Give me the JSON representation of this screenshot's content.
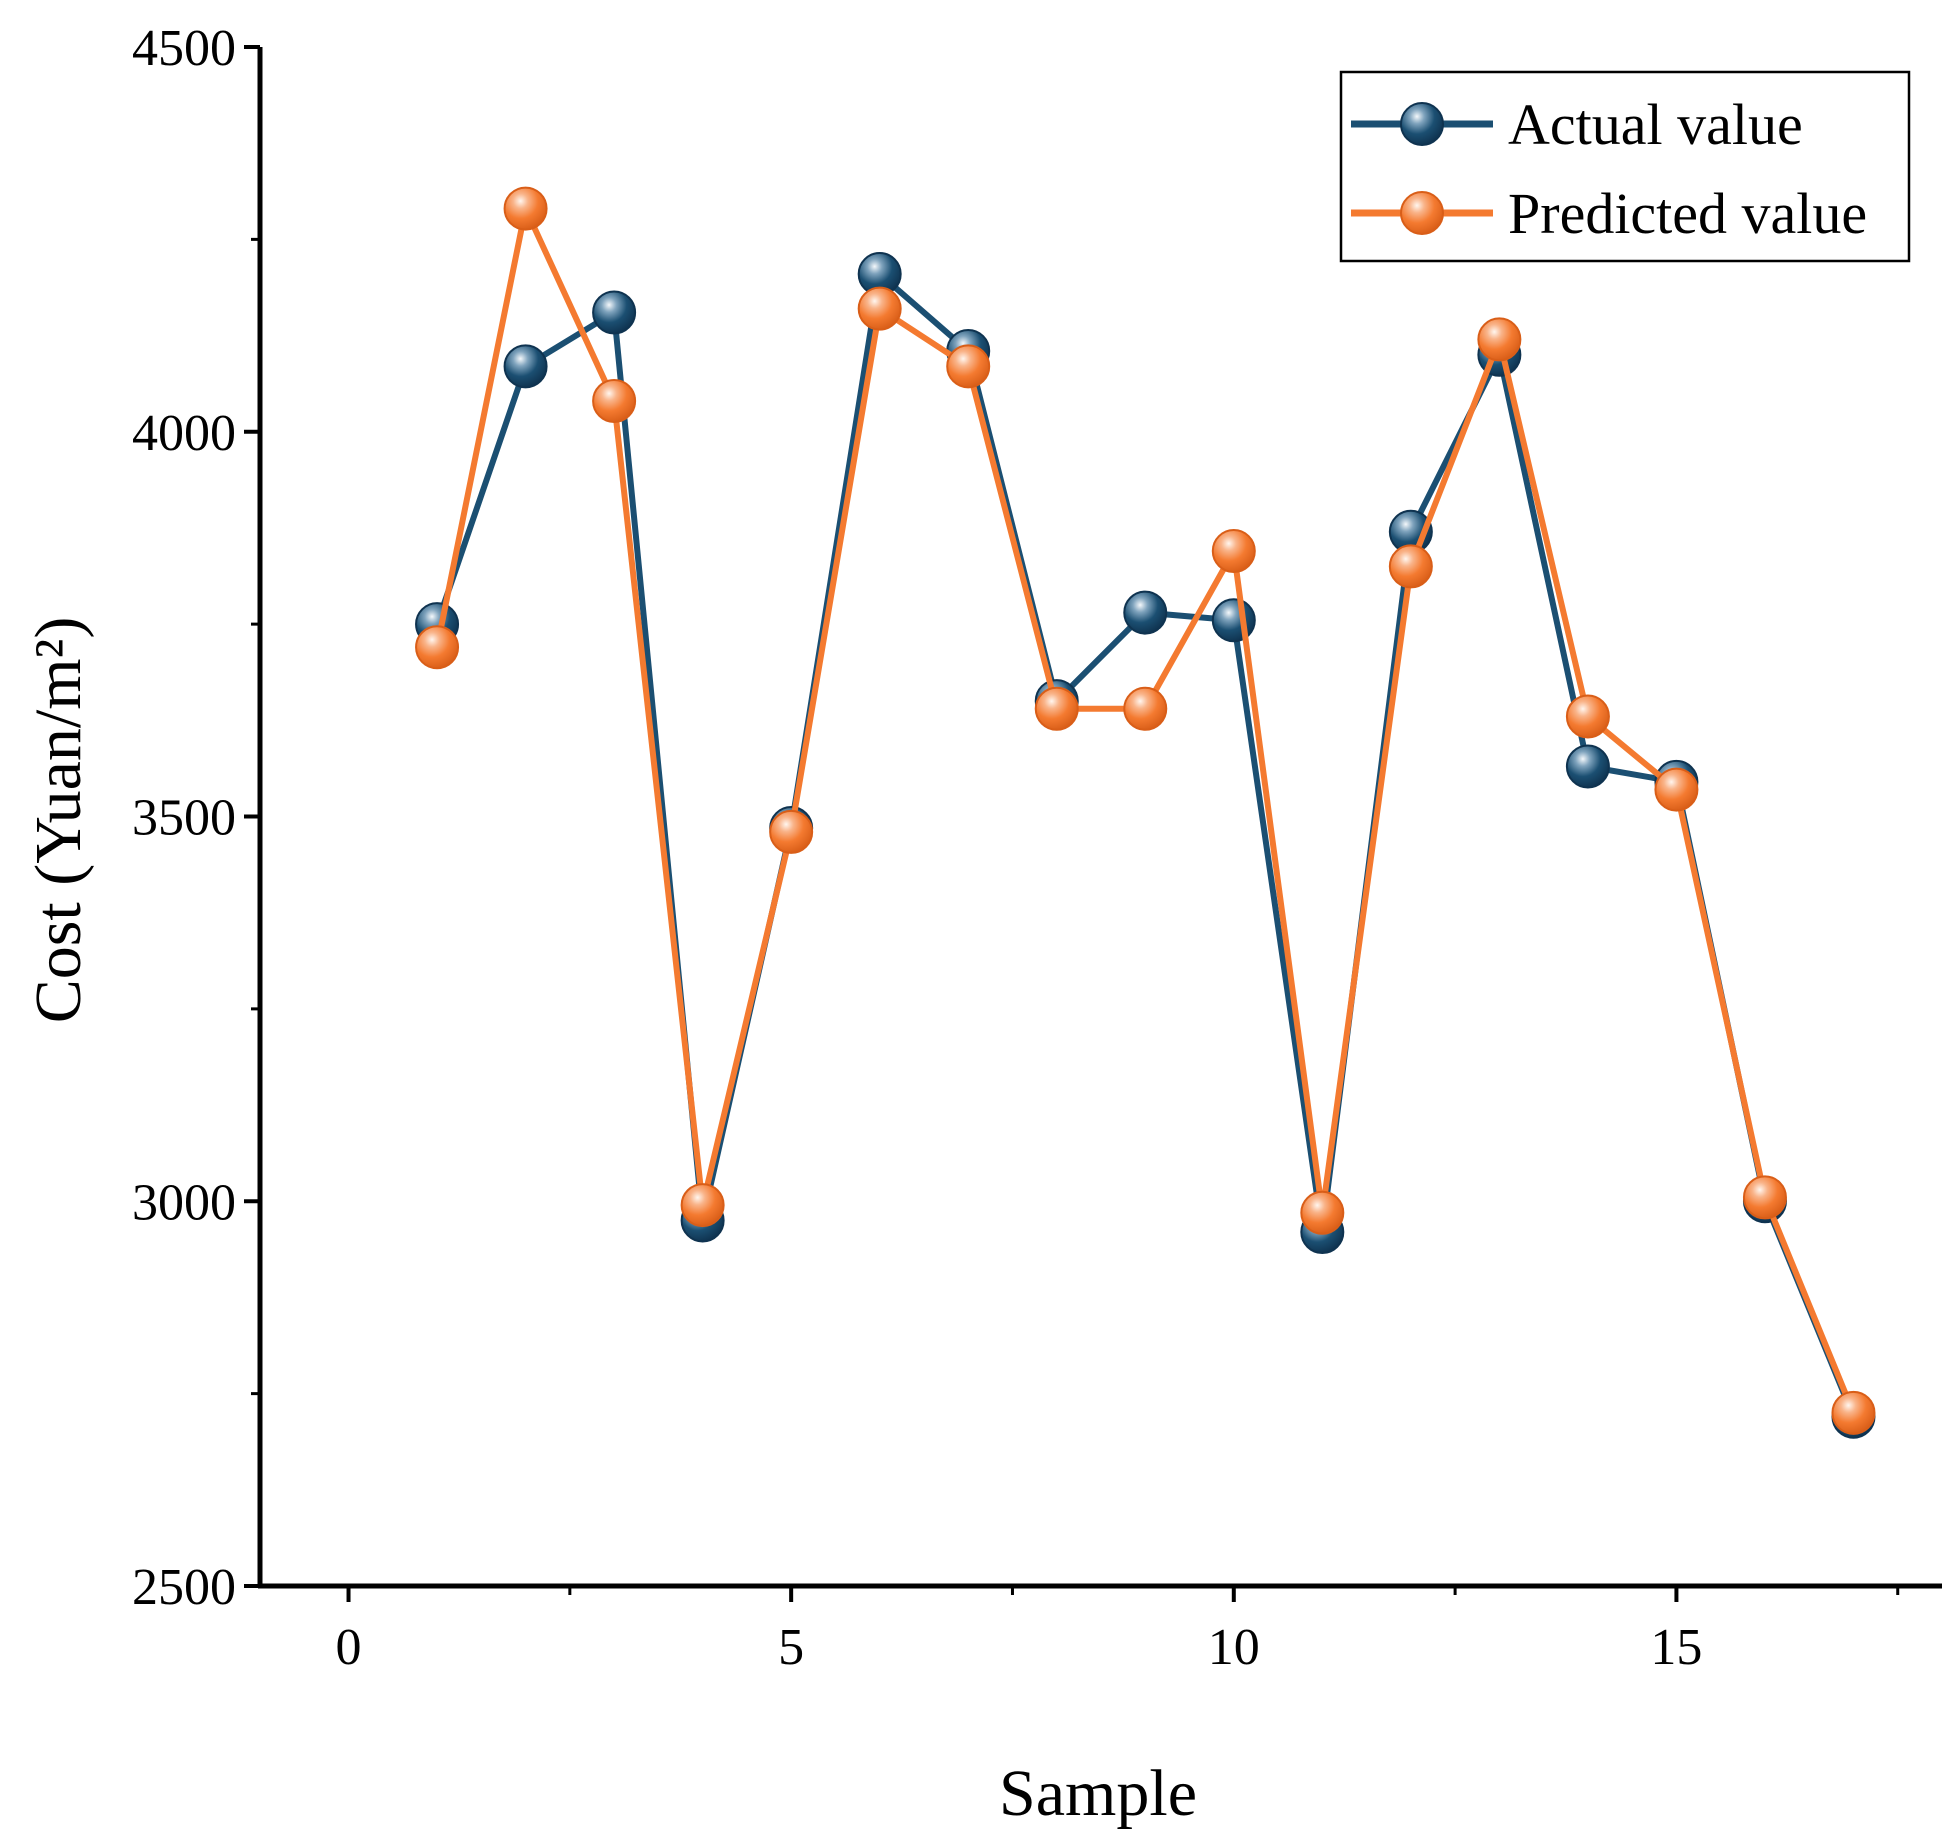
{
  "chart_data": {
    "type": "line",
    "title": "",
    "xlabel": "Sample",
    "ylabel": "Cost (Yuan/m²)",
    "xlim": [
      -1,
      18
    ],
    "ylim": [
      2500,
      4500
    ],
    "x_ticks": [
      0,
      5,
      10,
      15
    ],
    "x_tick_labels": [
      "0",
      "5",
      "10",
      "15"
    ],
    "y_ticks": [
      2500,
      3000,
      3500,
      4000,
      4500
    ],
    "y_tick_labels": [
      "2500",
      "3000",
      "3500",
      "4000",
      "4500"
    ],
    "legend_position": "top-right",
    "grid": false,
    "x": [
      1,
      2,
      3,
      4,
      5,
      6,
      7,
      8,
      9,
      10,
      11,
      12,
      13,
      14,
      15,
      16,
      17
    ],
    "series": [
      {
        "name": "Actual value",
        "color": "#1b4f72",
        "values": [
          3750,
          4085,
          4155,
          2975,
          3485,
          4205,
          4105,
          3650,
          3765,
          3755,
          2960,
          3870,
          4100,
          3565,
          3545,
          3000,
          2720
        ]
      },
      {
        "name": "Predicted value",
        "color": "#f47a30",
        "values": [
          3720,
          4290,
          4040,
          2995,
          3480,
          4160,
          4085,
          3640,
          3640,
          3845,
          2985,
          3825,
          4120,
          3630,
          3535,
          3005,
          2725
        ]
      }
    ]
  }
}
